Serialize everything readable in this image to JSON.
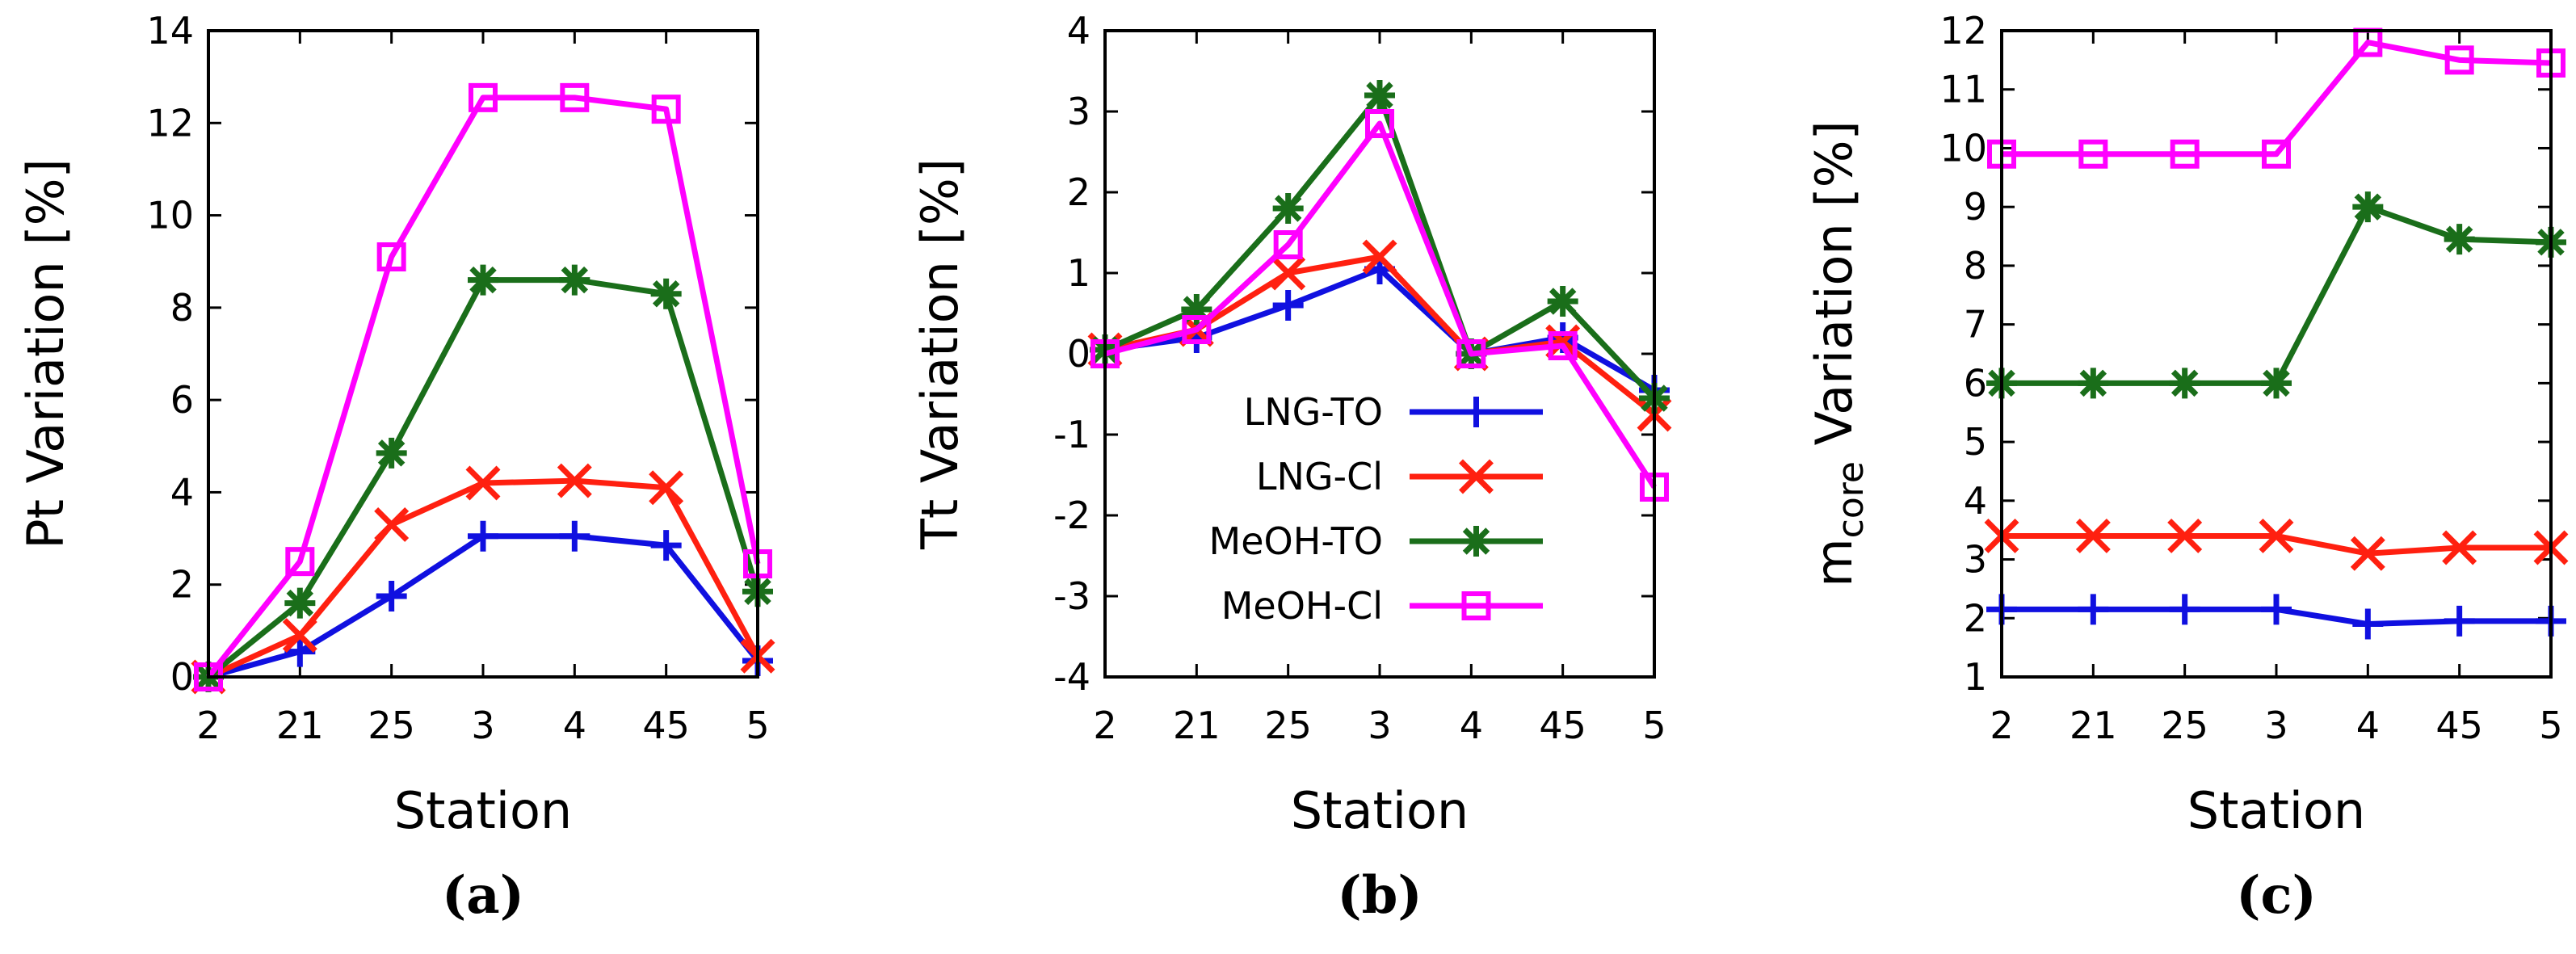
{
  "series_styles": [
    {
      "name": "LNG-TO",
      "color": "#1010e0",
      "marker": "plus"
    },
    {
      "name": "LNG-Cl",
      "color": "#ff2010",
      "marker": "cross"
    },
    {
      "name": "MeOH-TO",
      "color": "#1a6e1a",
      "marker": "star"
    },
    {
      "name": "MeOH-Cl",
      "color": "#ff00ff",
      "marker": "square"
    }
  ],
  "chart_data": [
    {
      "type": "line",
      "panel_label": "(a)",
      "xlabel": "Station",
      "ylabel": "Pt Variation [%]",
      "ylabel_parts": {
        "main": "Pt Variation [%]",
        "sub": ""
      },
      "categories": [
        "2",
        "21",
        "25",
        "3",
        "4",
        "45",
        "5"
      ],
      "ylim": [
        0,
        14
      ],
      "yticks": [
        0,
        2,
        4,
        6,
        8,
        10,
        12,
        14
      ],
      "series": [
        {
          "name": "LNG-TO",
          "values": [
            0,
            0.55,
            1.75,
            3.05,
            3.05,
            2.85,
            0.35
          ]
        },
        {
          "name": "LNG-Cl",
          "values": [
            0,
            0.9,
            3.3,
            4.2,
            4.25,
            4.1,
            0.45
          ]
        },
        {
          "name": "MeOH-TO",
          "values": [
            0,
            1.6,
            4.85,
            8.6,
            8.6,
            8.3,
            1.85
          ]
        },
        {
          "name": "MeOH-Cl",
          "values": [
            0,
            2.5,
            9.1,
            12.55,
            12.55,
            12.3,
            2.45
          ]
        }
      ]
    },
    {
      "type": "line",
      "panel_label": "(b)",
      "xlabel": "Station",
      "ylabel": "Tt Variation [%]",
      "ylabel_parts": {
        "main": "Tt Variation [%]",
        "sub": ""
      },
      "categories": [
        "2",
        "21",
        "25",
        "3",
        "4",
        "45",
        "5"
      ],
      "ylim": [
        -4,
        4
      ],
      "yticks": [
        -4,
        -3,
        -2,
        -1,
        0,
        1,
        2,
        3,
        4
      ],
      "legend": {
        "position": "lower-center",
        "entries": [
          "LNG-TO",
          "LNG-Cl",
          "MeOH-TO",
          "MeOH-Cl"
        ]
      },
      "series": [
        {
          "name": "LNG-TO",
          "values": [
            0.05,
            0.2,
            0.6,
            1.05,
            0.0,
            0.2,
            -0.45
          ]
        },
        {
          "name": "LNG-Cl",
          "values": [
            0.05,
            0.3,
            1.0,
            1.2,
            0.0,
            0.15,
            -0.75
          ]
        },
        {
          "name": "MeOH-TO",
          "values": [
            0.05,
            0.55,
            1.8,
            3.2,
            0.0,
            0.65,
            -0.55
          ]
        },
        {
          "name": "MeOH-Cl",
          "values": [
            0.0,
            0.3,
            1.35,
            2.85,
            0.0,
            0.1,
            -1.65
          ]
        }
      ]
    },
    {
      "type": "line",
      "panel_label": "(c)",
      "xlabel": "Station",
      "ylabel": "m_core Variation [%]",
      "ylabel_parts": {
        "main": "m",
        "sub": "core",
        "rest": " Variation [%]"
      },
      "categories": [
        "2",
        "21",
        "25",
        "3",
        "4",
        "45",
        "5"
      ],
      "ylim": [
        1,
        12
      ],
      "yticks": [
        1,
        2,
        3,
        4,
        5,
        6,
        7,
        8,
        9,
        10,
        11,
        12
      ],
      "series": [
        {
          "name": "LNG-TO",
          "values": [
            2.15,
            2.15,
            2.15,
            2.15,
            1.9,
            1.95,
            1.95
          ]
        },
        {
          "name": "LNG-Cl",
          "values": [
            3.4,
            3.4,
            3.4,
            3.4,
            3.1,
            3.2,
            3.2
          ]
        },
        {
          "name": "MeOH-TO",
          "values": [
            6.0,
            6.0,
            6.0,
            6.0,
            9.0,
            8.45,
            8.4
          ]
        },
        {
          "name": "MeOH-Cl",
          "values": [
            9.9,
            9.9,
            9.9,
            9.9,
            11.8,
            11.5,
            11.45
          ]
        }
      ]
    }
  ]
}
